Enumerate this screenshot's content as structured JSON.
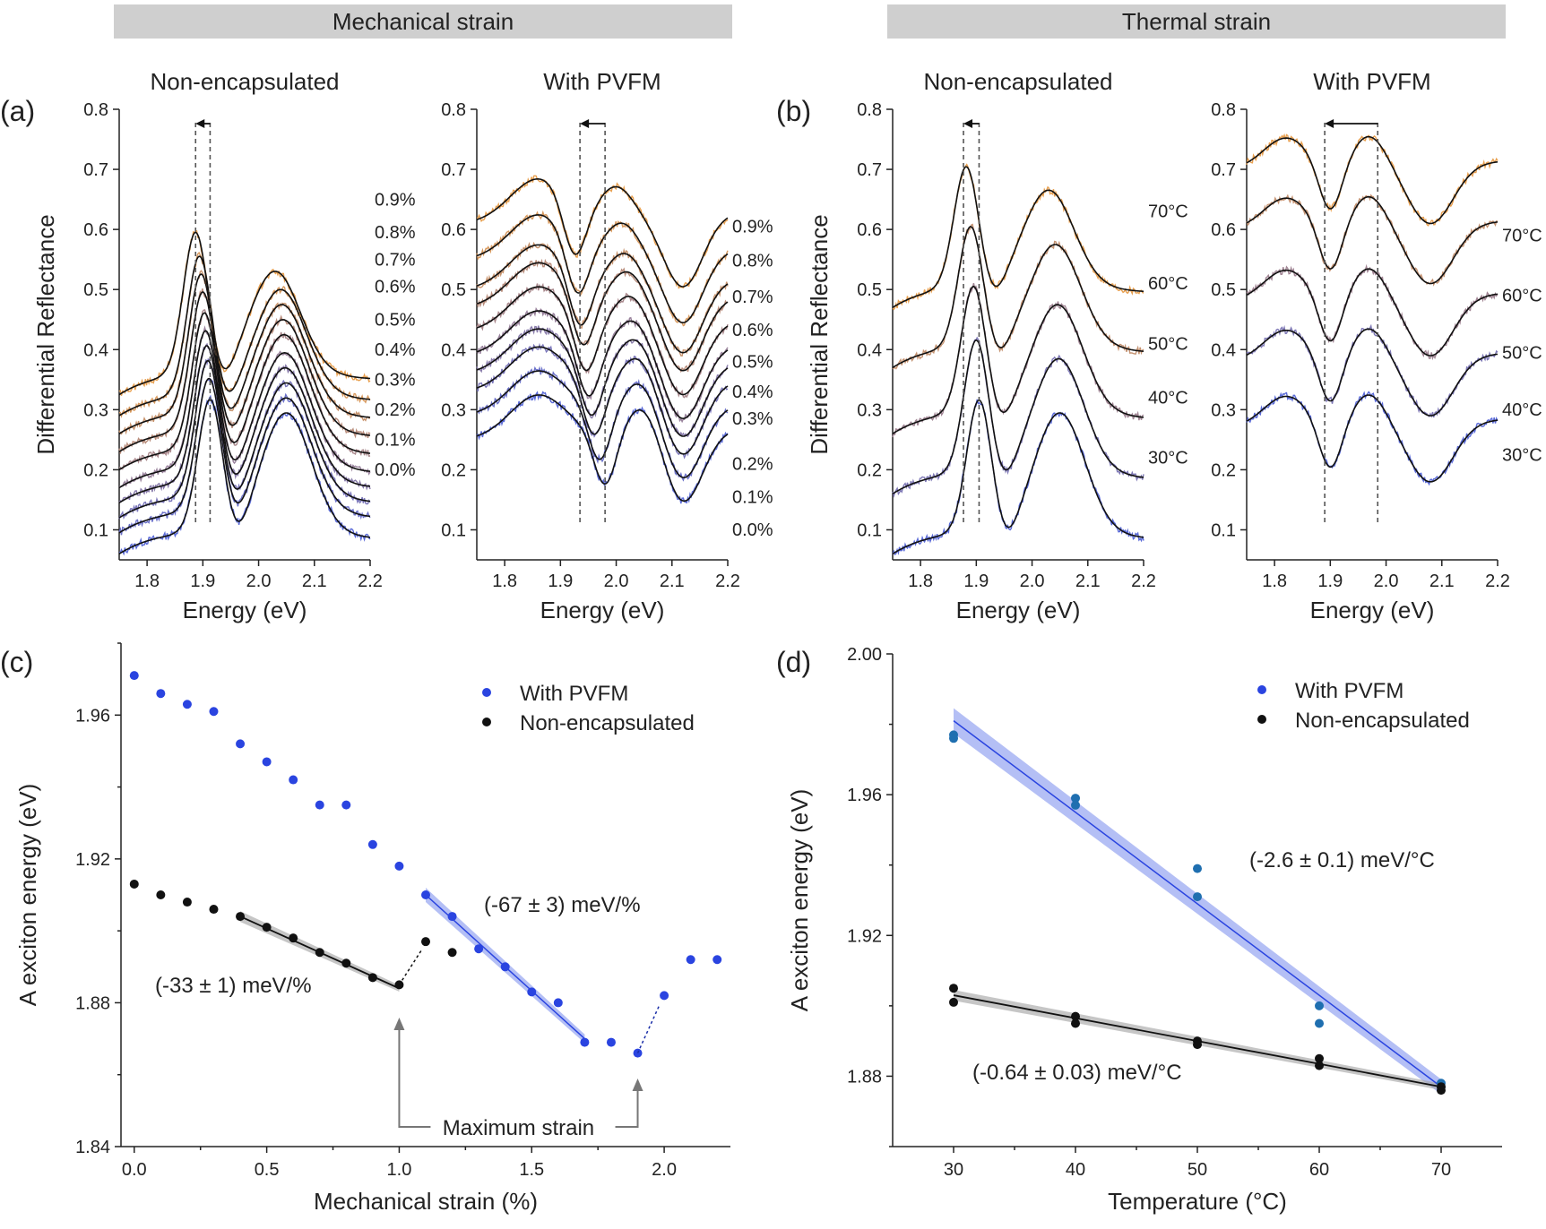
{
  "banners": [
    {
      "text": "Mechanical strain"
    },
    {
      "text": "Thermal strain"
    }
  ],
  "panels": {
    "a_label": "(a)",
    "b_label": "(b)",
    "c_label": "(c)",
    "d_label": "(d)"
  },
  "colors": {
    "noisy_low": "#5a6ad8",
    "noisy_high": "#e8a050",
    "fit": "#111111",
    "pvfm_points": "#2a44e0",
    "pvfm_band": "#8c9cf0",
    "nonenc_points": "#111111",
    "nonenc_band": "#a8a8a8",
    "label_low": "#5a5ac8",
    "label_high": "#d08038"
  },
  "chart_data": [
    {
      "id": "a1",
      "type": "line",
      "title": "Non-encapsulated",
      "xlabel": "Energy (eV)",
      "ylabel": "Differential Reflectance",
      "xlim": [
        1.75,
        2.2
      ],
      "ylim": [
        0.05,
        0.8
      ],
      "xticks": [
        "1.8",
        "1.9",
        "2.0",
        "2.1",
        "2.2"
      ],
      "yticks": [
        "0.1",
        "0.2",
        "0.3",
        "0.4",
        "0.5",
        "0.6",
        "0.7",
        "0.8"
      ],
      "series_labels": [
        "0.0%",
        "0.1%",
        "0.2%",
        "0.3%",
        "0.4%",
        "0.5%",
        "0.6%",
        "0.7%",
        "0.8%",
        "0.9%"
      ],
      "label_y": [
        0.19,
        0.24,
        0.29,
        0.34,
        0.39,
        0.44,
        0.495,
        0.54,
        0.585,
        0.64
      ],
      "offsets": [
        0.06,
        0.095,
        0.12,
        0.145,
        0.17,
        0.2,
        0.23,
        0.26,
        0.29,
        0.325
      ],
      "peakA": [
        1.913,
        1.911,
        1.909,
        1.907,
        1.905,
        1.903,
        1.9,
        1.897,
        1.894,
        1.887
      ],
      "ampA": [
        0.22,
        0.22,
        0.225,
        0.225,
        0.225,
        0.225,
        0.23,
        0.23,
        0.23,
        0.235
      ],
      "peakB": [
        2.05,
        2.05,
        2.05,
        2.048,
        2.047,
        2.046,
        2.044,
        2.042,
        2.04,
        2.03
      ],
      "ampB": [
        0.2,
        0.19,
        0.19,
        0.19,
        0.19,
        0.19,
        0.185,
        0.18,
        0.175,
        0.17
      ],
      "guides": [
        1.887,
        1.913
      ]
    },
    {
      "id": "a2",
      "type": "line",
      "title": "With PVFM",
      "xlabel": "Energy (eV)",
      "xlim": [
        1.75,
        2.2
      ],
      "ylim": [
        0.05,
        0.8
      ],
      "xticks": [
        "1.8",
        "1.9",
        "2.0",
        "2.1",
        "2.2"
      ],
      "yticks": [
        "0.1",
        "0.2",
        "0.3",
        "0.4",
        "0.5",
        "0.6",
        "0.7",
        "0.8"
      ],
      "series_labels": [
        "0.0%",
        "0.1%",
        "0.2%",
        "0.3%",
        "0.4%",
        "0.5%",
        "0.6%",
        "0.7%",
        "0.8%",
        "0.9%"
      ],
      "label_y": [
        0.09,
        0.145,
        0.2,
        0.275,
        0.32,
        0.37,
        0.423,
        0.478,
        0.538,
        0.595
      ],
      "offsets": [
        0.25,
        0.29,
        0.33,
        0.36,
        0.39,
        0.43,
        0.47,
        0.5,
        0.55,
        0.61
      ],
      "peakA": [
        1.98,
        1.97,
        1.96,
        1.955,
        1.95,
        1.945,
        1.94,
        1.935,
        1.93,
        1.925
      ],
      "peakB": [
        2.05,
        2.045,
        2.04,
        2.035,
        2.03,
        2.025,
        2.02,
        2.015,
        2.01,
        2.0
      ],
      "guides": [
        1.935,
        1.98
      ]
    },
    {
      "id": "b1",
      "type": "line",
      "title": "Non-encapsulated",
      "xlabel": "Energy (eV)",
      "ylabel": "Differential Reflectance",
      "xlim": [
        1.75,
        2.2
      ],
      "ylim": [
        0.05,
        0.8
      ],
      "xticks": [
        "1.8",
        "1.9",
        "2.0",
        "2.1",
        "2.2"
      ],
      "yticks": [
        "0.1",
        "0.2",
        "0.3",
        "0.4",
        "0.5",
        "0.6",
        "0.7",
        "0.8"
      ],
      "series_labels": [
        "30°C",
        "40°C",
        "50°C",
        "60°C",
        "70°C"
      ],
      "label_y": [
        0.21,
        0.31,
        0.4,
        0.5,
        0.62
      ],
      "offsets": [
        0.06,
        0.16,
        0.26,
        0.37,
        0.47
      ],
      "peakA": [
        1.905,
        1.9,
        1.895,
        1.89,
        1.882
      ],
      "ampA": [
        0.22,
        0.22,
        0.21,
        0.2,
        0.2
      ],
      "peakB": [
        2.05,
        2.048,
        2.046,
        2.042,
        2.03
      ],
      "ampB": [
        0.2,
        0.19,
        0.18,
        0.17,
        0.16
      ],
      "guides": [
        1.877,
        1.905
      ]
    },
    {
      "id": "b2",
      "type": "line",
      "title": "With PVFM",
      "xlabel": "Energy (eV)",
      "xlim": [
        1.75,
        2.2
      ],
      "ylim": [
        0.05,
        0.8
      ],
      "xticks": [
        "1.8",
        "1.9",
        "2.0",
        "2.1",
        "2.2"
      ],
      "yticks": [
        "0.1",
        "0.2",
        "0.3",
        "0.4",
        "0.5",
        "0.6",
        "0.7",
        "0.8"
      ],
      "series_labels": [
        "30°C",
        "40°C",
        "50°C",
        "60°C",
        "70°C"
      ],
      "label_y": [
        0.215,
        0.29,
        0.385,
        0.48,
        0.58
      ],
      "offsets": [
        0.27,
        0.38,
        0.48,
        0.6,
        0.7
      ],
      "guides": [
        1.89,
        1.985
      ]
    },
    {
      "id": "c",
      "type": "scatter",
      "xlabel": "Mechanical strain (%)",
      "ylabel": "A exciton energy (eV)",
      "xlim": [
        -0.05,
        2.25
      ],
      "ylim": [
        1.84,
        1.98
      ],
      "xticks": [
        "0.0",
        "0.5",
        "1.0",
        "1.5",
        "2.0"
      ],
      "yticks": [
        "1.84",
        "1.88",
        "1.92",
        "1.96"
      ],
      "legend": [
        "With PVFM",
        "Non-encapsulated"
      ],
      "pvfm": {
        "x": [
          0.0,
          0.1,
          0.2,
          0.3,
          0.4,
          0.5,
          0.6,
          0.7,
          0.8,
          0.9,
          1.0,
          1.1,
          1.2,
          1.3,
          1.4,
          1.5,
          1.6,
          1.7,
          1.8,
          1.9,
          2.0,
          2.1,
          2.2
        ],
        "y": [
          1.971,
          1.966,
          1.963,
          1.961,
          1.952,
          1.947,
          1.942,
          1.935,
          1.935,
          1.924,
          1.918,
          1.91,
          1.904,
          1.895,
          1.89,
          1.883,
          1.88,
          1.869,
          1.869,
          1.866,
          1.882,
          1.892,
          1.892
        ]
      },
      "nonenc": {
        "x": [
          0.0,
          0.1,
          0.2,
          0.3,
          0.4,
          0.5,
          0.6,
          0.7,
          0.8,
          0.9,
          1.0,
          1.1,
          1.2
        ],
        "y": [
          1.913,
          1.91,
          1.908,
          1.906,
          1.904,
          1.901,
          1.898,
          1.894,
          1.891,
          1.887,
          1.885,
          1.897,
          1.894
        ]
      },
      "fit_pvfm": {
        "x": [
          1.1,
          1.7
        ],
        "y": [
          1.91,
          1.87
        ]
      },
      "fit_nonenc": {
        "x": [
          0.4,
          1.0
        ],
        "y": [
          1.904,
          1.884
        ]
      },
      "annotation_pvfm": "(-67 ± 3) meV/%",
      "annotation_nonenc": "(-33 ± 1) meV/%",
      "annotation_max": "Maximum strain"
    },
    {
      "id": "d",
      "type": "scatter",
      "xlabel": "Temperature (°C)",
      "ylabel": "A exciton energy (eV)",
      "xlim": [
        25,
        75
      ],
      "ylim": [
        1.86,
        2.0
      ],
      "xticks": [
        "30",
        "40",
        "50",
        "60",
        "70"
      ],
      "yticks": [
        "1.88",
        "1.92",
        "1.96",
        "2.00"
      ],
      "legend": [
        "With PVFM",
        "Non-encapsulated"
      ],
      "pvfm": {
        "x": [
          30,
          30,
          40,
          40,
          50,
          50,
          60,
          60,
          70,
          70
        ],
        "y": [
          1.977,
          1.976,
          1.959,
          1.957,
          1.939,
          1.931,
          1.9,
          1.895,
          1.878,
          1.877
        ]
      },
      "nonenc": {
        "x": [
          30,
          30,
          40,
          40,
          50,
          50,
          60,
          60,
          70,
          70
        ],
        "y": [
          1.905,
          1.901,
          1.897,
          1.895,
          1.89,
          1.889,
          1.885,
          1.883,
          1.877,
          1.876
        ]
      },
      "fit_pvfm": {
        "x": [
          30,
          70
        ],
        "y": [
          1.981,
          1.877
        ]
      },
      "fit_nonenc": {
        "x": [
          30,
          70
        ],
        "y": [
          1.903,
          1.877
        ]
      },
      "annotation_pvfm": "(-2.6 ± 0.1) meV/°C",
      "annotation_nonenc": "(-0.64 ± 0.03) meV/°C"
    }
  ]
}
